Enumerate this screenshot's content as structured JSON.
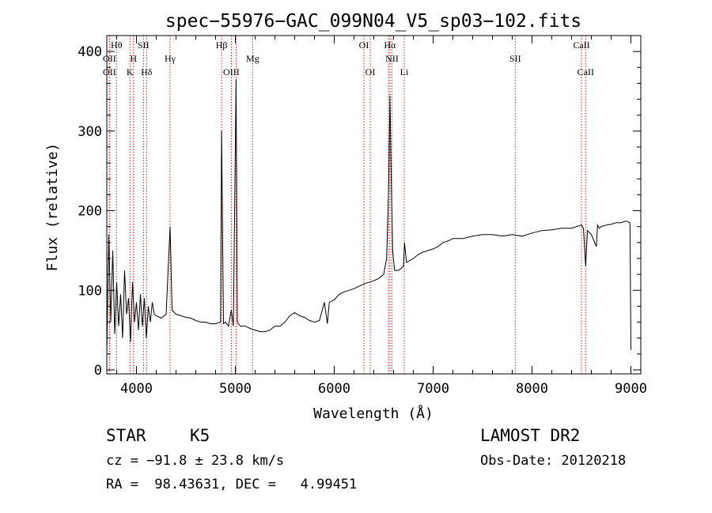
{
  "chart_data": {
    "type": "line",
    "title": "spec−55976−GAC_099N04_V5_sp03−102.fits",
    "xlabel": "Wavelength (Å)",
    "ylabel": "Flux (relative)",
    "xlim": [
      3700,
      9100
    ],
    "ylim": [
      -5,
      420
    ],
    "xticks": [
      4000,
      5000,
      6000,
      7000,
      8000,
      9000
    ],
    "yticks": [
      0,
      100,
      200,
      300,
      400
    ],
    "series": [
      {
        "x": [
          3700,
          3720,
          3740,
          3760,
          3780,
          3800,
          3820,
          3840,
          3860,
          3880,
          3900,
          3920,
          3940,
          3960,
          3980,
          4000,
          4020,
          4040,
          4060,
          4080,
          4100,
          4120,
          4140,
          4160,
          4180,
          4200,
          4250,
          4300,
          4340,
          4360,
          4400,
          4450,
          4500,
          4550,
          4600,
          4650,
          4700,
          4750,
          4800,
          4850,
          4861,
          4880,
          4900,
          4930,
          4959,
          4980,
          5007,
          5020,
          5050,
          5100,
          5150,
          5200,
          5250,
          5300,
          5350,
          5400,
          5450,
          5500,
          5550,
          5600,
          5650,
          5700,
          5750,
          5800,
          5850,
          5900,
          5930,
          5950,
          6000,
          6050,
          6100,
          6150,
          6200,
          6250,
          6300,
          6350,
          6400,
          6450,
          6500,
          6530,
          6550,
          6563,
          6575,
          6590,
          6610,
          6650,
          6700,
          6710,
          6730,
          6800,
          6850,
          6900,
          6950,
          7000,
          7050,
          7100,
          7150,
          7200,
          7300,
          7400,
          7500,
          7600,
          7700,
          7800,
          7900,
          8000,
          8100,
          8200,
          8300,
          8400,
          8450,
          8500,
          8520,
          8542,
          8560,
          8600,
          8650,
          8662,
          8680,
          8700,
          8750,
          8800,
          8850,
          8900,
          8950,
          8990,
          9000
        ],
        "y": [
          20,
          170,
          60,
          150,
          45,
          110,
          55,
          95,
          40,
          125,
          70,
          90,
          35,
          110,
          60,
          85,
          50,
          95,
          55,
          90,
          40,
          80,
          60,
          85,
          70,
          68,
          65,
          70,
          180,
          75,
          70,
          68,
          66,
          65,
          62,
          60,
          60,
          58,
          58,
          60,
          300,
          58,
          60,
          55,
          75,
          55,
          365,
          60,
          55,
          55,
          52,
          50,
          48,
          48,
          50,
          55,
          55,
          60,
          68,
          72,
          68,
          66,
          62,
          60,
          62,
          85,
          58,
          85,
          88,
          95,
          98,
          100,
          102,
          105,
          108,
          110,
          112,
          115,
          120,
          140,
          230,
          345,
          250,
          150,
          125,
          125,
          130,
          160,
          135,
          140,
          145,
          148,
          150,
          152,
          155,
          160,
          162,
          165,
          165,
          168,
          170,
          170,
          168,
          170,
          168,
          172,
          175,
          176,
          178,
          178,
          180,
          182,
          178,
          130,
          175,
          170,
          155,
          182,
          178,
          180,
          182,
          183,
          185,
          185,
          187,
          185,
          25
        ]
      }
    ],
    "line_markers": [
      {
        "x": 3727,
        "label": "OII",
        "row": "upper"
      },
      {
        "x": 3727,
        "label": "OII",
        "row": "lower"
      },
      {
        "x": 3798,
        "label": "Hθ",
        "row": "top"
      },
      {
        "x": 3934,
        "label": "K",
        "row": "lower"
      },
      {
        "x": 3970,
        "label": "H",
        "row": "upper"
      },
      {
        "x": 4070,
        "label": "SII",
        "row": "top"
      },
      {
        "x": 4102,
        "label": "Hδ",
        "row": "lower"
      },
      {
        "x": 4340,
        "label": "Hγ",
        "row": "upper"
      },
      {
        "x": 4861,
        "label": "Hβ",
        "row": "top"
      },
      {
        "x": 4959,
        "label": "OIII",
        "row": "lower"
      },
      {
        "x": 5007,
        "label": "",
        "row": "lower"
      },
      {
        "x": 5175,
        "label": "Mg",
        "row": "upper"
      },
      {
        "x": 6300,
        "label": "OI",
        "row": "top"
      },
      {
        "x": 6364,
        "label": "OI",
        "row": "lower"
      },
      {
        "x": 6548,
        "label": "",
        "row": "upper"
      },
      {
        "x": 6563,
        "label": "Hα",
        "row": "top"
      },
      {
        "x": 6583,
        "label": "NII",
        "row": "upper"
      },
      {
        "x": 6708,
        "label": "Li",
        "row": "lower"
      },
      {
        "x": 7830,
        "label": "SII",
        "row": "upper"
      },
      {
        "x": 8500,
        "label": "CaII",
        "row": "top"
      },
      {
        "x": 8542,
        "label": "CaII",
        "row": "lower"
      }
    ],
    "grid": false
  },
  "info": {
    "object_class": "STAR",
    "subclass": "K5",
    "survey": "LAMOST DR2",
    "redshift_text": "cz = −91.8 ± 23.8 km/s",
    "obs_date": "Obs-Date: 20120218",
    "coords": "RA =  98.43631, DEC =   4.99451"
  },
  "colors": {
    "axis": "#000000",
    "spectrum": "#000000",
    "marker_line": "#b22222"
  }
}
